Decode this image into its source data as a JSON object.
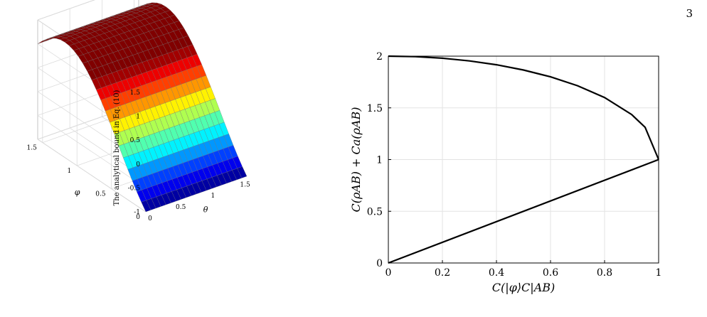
{
  "page_number": "3",
  "chart_data": [
    {
      "type": "surface",
      "zlabel": "The analytical bound in Eq. (10)",
      "xlabel": "θ",
      "ylabel": "φ",
      "x_ticks": [
        "0",
        "0.5",
        "1",
        "1.5"
      ],
      "y_ticks": [
        "0",
        "0.5",
        "1",
        "1.5"
      ],
      "z_ticks": [
        "-1",
        "-0.5",
        "0",
        "0.5",
        "1",
        "1.5"
      ],
      "xlim": [
        0,
        1.5708
      ],
      "ylim": [
        0,
        1.5708
      ],
      "zlim": [
        -1,
        1.5
      ],
      "colormap": "jet",
      "grid": true,
      "function_samples": {
        "phi": [
          0,
          0.1963,
          0.3927,
          0.589,
          0.7854,
          0.9817,
          1.1781,
          1.3744,
          1.5708
        ],
        "value": [
          -1.0,
          -0.71,
          -0.41,
          -0.12,
          0.15,
          0.4,
          0.62,
          0.82,
          1.0
        ]
      }
    },
    {
      "type": "line",
      "xlabel": "C(|φ⟩C|AB)",
      "ylabel": "C(ρAB) + Ca(ρAB)",
      "xlim": [
        0,
        1
      ],
      "ylim": [
        0,
        2
      ],
      "x_ticks": [
        "0",
        "0.2",
        "0.4",
        "0.6",
        "0.8",
        "1"
      ],
      "y_ticks": [
        "0",
        "0.5",
        "1",
        "1.5",
        "2"
      ],
      "grid": true,
      "series": [
        {
          "color": "#000000",
          "x": [
            0,
            0.1,
            0.2,
            0.3,
            0.4,
            0.5,
            0.6,
            0.7,
            0.8,
            0.9,
            0.95,
            1.0
          ],
          "y": [
            2.0,
            1.995,
            1.98,
            1.954,
            1.917,
            1.866,
            1.8,
            1.714,
            1.6,
            1.436,
            1.312,
            1.0
          ]
        },
        {
          "color": "#000000",
          "x": [
            0,
            1
          ],
          "y": [
            0,
            1
          ]
        }
      ]
    }
  ]
}
